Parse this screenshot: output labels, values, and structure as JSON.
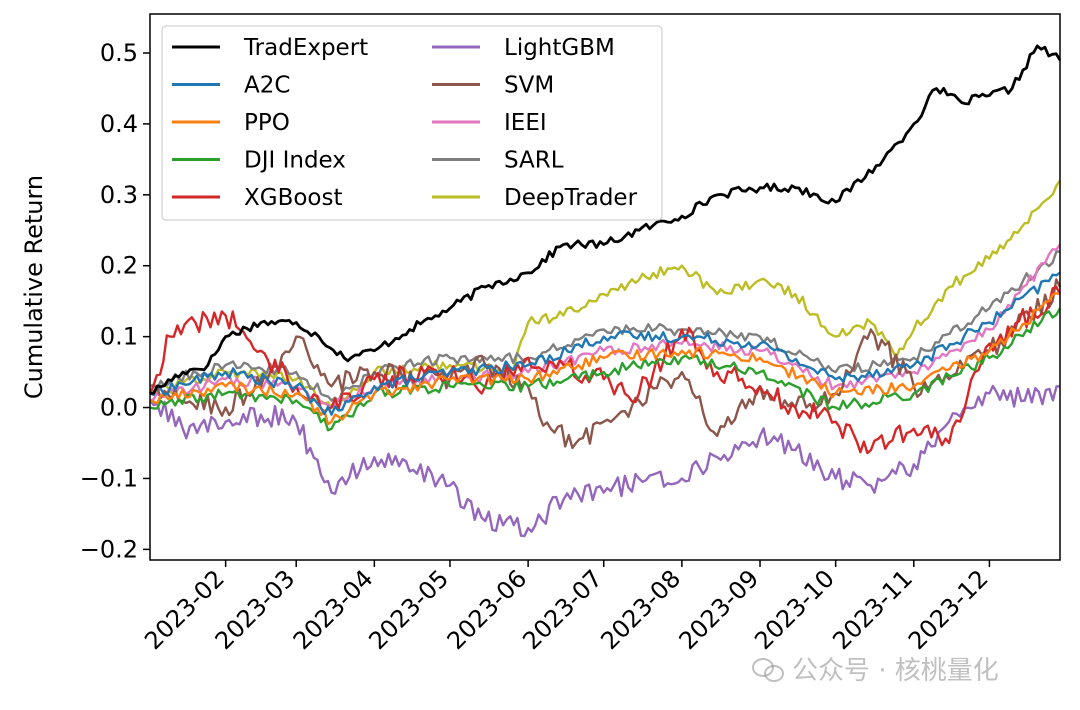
{
  "chart_data": {
    "type": "line",
    "title": "",
    "xlabel": "",
    "ylabel": "Cumulative Return",
    "ylim": [
      -0.215,
      0.555
    ],
    "xlim": [
      "2023-01-02",
      "2023-12-29"
    ],
    "yticks": [
      -0.2,
      -0.1,
      0.0,
      0.1,
      0.2,
      0.3,
      0.4,
      0.5
    ],
    "ytick_labels": [
      "−0.2",
      "−0.1",
      "0.0",
      "0.1",
      "0.2",
      "0.3",
      "0.4",
      "0.5"
    ],
    "xticks": [
      "2023-02-01",
      "2023-03-01",
      "2023-04-01",
      "2023-05-01",
      "2023-06-01",
      "2023-07-01",
      "2023-08-01",
      "2023-09-01",
      "2023-10-01",
      "2023-11-01",
      "2023-12-01"
    ],
    "xtick_labels": [
      "2023-02",
      "2023-03",
      "2023-04",
      "2023-05",
      "2023-06",
      "2023-07",
      "2023-08",
      "2023-09",
      "2023-10",
      "2023-11",
      "2023-12"
    ],
    "grid": false,
    "legend_position": "top-left",
    "legend_columns": 2,
    "series": [
      {
        "name": "TradExpert",
        "color": "#000000",
        "x": [
          "2023-01-02",
          "2023-01-15",
          "2023-01-25",
          "2023-02-01",
          "2023-02-15",
          "2023-03-01",
          "2023-03-10",
          "2023-03-20",
          "2023-04-01",
          "2023-04-15",
          "2023-05-01",
          "2023-05-15",
          "2023-06-01",
          "2023-06-15",
          "2023-07-01",
          "2023-07-15",
          "2023-08-01",
          "2023-08-15",
          "2023-09-01",
          "2023-09-15",
          "2023-10-01",
          "2023-10-20",
          "2023-11-01",
          "2023-11-10",
          "2023-11-20",
          "2023-12-01",
          "2023-12-10",
          "2023-12-20",
          "2023-12-29"
        ],
        "values": [
          0.02,
          0.05,
          0.06,
          0.1,
          0.12,
          0.12,
          0.1,
          0.07,
          0.08,
          0.11,
          0.14,
          0.17,
          0.19,
          0.23,
          0.23,
          0.25,
          0.27,
          0.3,
          0.31,
          0.31,
          0.29,
          0.35,
          0.4,
          0.45,
          0.43,
          0.44,
          0.45,
          0.51,
          0.49
        ]
      },
      {
        "name": "A2C",
        "color": "#1f77b4",
        "x": [
          "2023-01-02",
          "2023-02-01",
          "2023-03-01",
          "2023-03-15",
          "2023-04-01",
          "2023-05-01",
          "2023-06-01",
          "2023-07-01",
          "2023-08-01",
          "2023-09-01",
          "2023-10-01",
          "2023-11-01",
          "2023-12-01",
          "2023-12-29"
        ],
        "values": [
          0.02,
          0.05,
          0.03,
          -0.01,
          0.03,
          0.05,
          0.06,
          0.1,
          0.1,
          0.09,
          0.04,
          0.06,
          0.12,
          0.19
        ]
      },
      {
        "name": "PPO",
        "color": "#ff7f0e",
        "x": [
          "2023-01-02",
          "2023-02-01",
          "2023-03-01",
          "2023-03-15",
          "2023-04-01",
          "2023-05-01",
          "2023-06-01",
          "2023-07-01",
          "2023-08-01",
          "2023-09-01",
          "2023-10-01",
          "2023-11-01",
          "2023-12-01",
          "2023-12-29"
        ],
        "values": [
          0.01,
          0.03,
          0.02,
          -0.02,
          0.02,
          0.04,
          0.04,
          0.07,
          0.08,
          0.07,
          0.02,
          0.03,
          0.08,
          0.16
        ]
      },
      {
        "name": "DJI Index",
        "color": "#2ca02c",
        "x": [
          "2023-01-02",
          "2023-02-01",
          "2023-03-01",
          "2023-03-15",
          "2023-04-01",
          "2023-05-01",
          "2023-06-01",
          "2023-07-01",
          "2023-08-01",
          "2023-09-01",
          "2023-10-01",
          "2023-11-01",
          "2023-12-01",
          "2023-12-29"
        ],
        "values": [
          0.0,
          0.02,
          0.01,
          -0.03,
          0.02,
          0.03,
          0.03,
          0.05,
          0.07,
          0.05,
          0.0,
          0.02,
          0.07,
          0.14
        ]
      },
      {
        "name": "XGBoost",
        "color": "#d62728",
        "x": [
          "2023-01-02",
          "2023-01-10",
          "2023-01-20",
          "2023-02-01",
          "2023-02-15",
          "2023-03-01",
          "2023-03-15",
          "2023-04-01",
          "2023-05-01",
          "2023-05-15",
          "2023-06-01",
          "2023-06-15",
          "2023-07-01",
          "2023-07-15",
          "2023-08-01",
          "2023-08-15",
          "2023-09-01",
          "2023-09-15",
          "2023-10-01",
          "2023-10-15",
          "2023-11-01",
          "2023-11-15",
          "2023-12-01",
          "2023-12-29"
        ],
        "values": [
          0.02,
          0.1,
          0.12,
          0.13,
          0.08,
          0.03,
          0.0,
          0.04,
          0.05,
          0.03,
          0.07,
          0.06,
          0.04,
          0.02,
          0.11,
          0.05,
          0.03,
          0.0,
          -0.02,
          -0.06,
          -0.03,
          -0.05,
          0.09,
          0.16
        ]
      },
      {
        "name": "LightGBM",
        "color": "#9467bd",
        "x": [
          "2023-01-02",
          "2023-01-15",
          "2023-02-01",
          "2023-02-15",
          "2023-03-01",
          "2023-03-15",
          "2023-04-01",
          "2023-04-15",
          "2023-05-01",
          "2023-05-15",
          "2023-06-01",
          "2023-06-15",
          "2023-07-01",
          "2023-07-15",
          "2023-08-01",
          "2023-08-15",
          "2023-09-01",
          "2023-09-15",
          "2023-10-01",
          "2023-10-15",
          "2023-11-01",
          "2023-11-15",
          "2023-12-01",
          "2023-12-15",
          "2023-12-29"
        ],
        "values": [
          0.01,
          -0.03,
          -0.02,
          -0.01,
          -0.02,
          -0.12,
          -0.07,
          -0.09,
          -0.11,
          -0.16,
          -0.17,
          -0.13,
          -0.12,
          -0.1,
          -0.1,
          -0.07,
          -0.04,
          -0.06,
          -0.1,
          -0.11,
          -0.08,
          -0.02,
          0.02,
          0.01,
          0.03
        ]
      },
      {
        "name": "SVM",
        "color": "#8c564b",
        "x": [
          "2023-01-02",
          "2023-02-01",
          "2023-02-15",
          "2023-03-01",
          "2023-03-15",
          "2023-04-01",
          "2023-05-01",
          "2023-05-15",
          "2023-06-01",
          "2023-06-10",
          "2023-06-20",
          "2023-07-01",
          "2023-07-15",
          "2023-08-01",
          "2023-08-15",
          "2023-09-01",
          "2023-09-15",
          "2023-10-01",
          "2023-10-15",
          "2023-11-01",
          "2023-11-15",
          "2023-12-01",
          "2023-12-29"
        ],
        "values": [
          0.02,
          0.0,
          0.03,
          0.1,
          0.03,
          0.05,
          0.04,
          0.06,
          0.03,
          -0.03,
          -0.05,
          -0.02,
          0.01,
          0.05,
          -0.04,
          0.03,
          0.0,
          0.02,
          0.11,
          0.03,
          0.04,
          0.08,
          0.17
        ]
      },
      {
        "name": "IEEI",
        "color": "#e377c2",
        "x": [
          "2023-01-02",
          "2023-02-01",
          "2023-03-01",
          "2023-03-15",
          "2023-04-01",
          "2023-05-01",
          "2023-06-01",
          "2023-07-01",
          "2023-08-01",
          "2023-09-01",
          "2023-10-01",
          "2023-11-01",
          "2023-12-01",
          "2023-12-29"
        ],
        "values": [
          0.01,
          0.04,
          0.03,
          0.0,
          0.03,
          0.04,
          0.05,
          0.08,
          0.09,
          0.08,
          0.03,
          0.05,
          0.11,
          0.23
        ]
      },
      {
        "name": "SARL",
        "color": "#7f7f7f",
        "x": [
          "2023-01-02",
          "2023-02-01",
          "2023-03-01",
          "2023-03-15",
          "2023-04-01",
          "2023-05-01",
          "2023-06-01",
          "2023-07-01",
          "2023-08-01",
          "2023-09-01",
          "2023-10-01",
          "2023-11-01",
          "2023-12-01",
          "2023-12-29"
        ],
        "values": [
          0.03,
          0.06,
          0.05,
          0.01,
          0.05,
          0.07,
          0.07,
          0.11,
          0.11,
          0.1,
          0.05,
          0.07,
          0.14,
          0.22
        ]
      },
      {
        "name": "DeepTrader",
        "color": "#bcbd22",
        "x": [
          "2023-01-02",
          "2023-02-01",
          "2023-03-01",
          "2023-03-15",
          "2023-04-01",
          "2023-05-01",
          "2023-05-25",
          "2023-06-01",
          "2023-06-15",
          "2023-07-01",
          "2023-07-15",
          "2023-08-01",
          "2023-08-15",
          "2023-09-01",
          "2023-09-15",
          "2023-10-01",
          "2023-10-15",
          "2023-10-25",
          "2023-11-01",
          "2023-11-15",
          "2023-12-01",
          "2023-12-15",
          "2023-12-29"
        ],
        "values": [
          0.02,
          0.05,
          0.04,
          0.0,
          0.05,
          0.06,
          0.05,
          0.12,
          0.13,
          0.16,
          0.18,
          0.2,
          0.16,
          0.18,
          0.16,
          0.1,
          0.12,
          0.07,
          0.11,
          0.17,
          0.21,
          0.26,
          0.32
        ]
      }
    ]
  },
  "watermark": {
    "text": "公众号 · 核桃量化",
    "icon": "wechat-icon"
  }
}
